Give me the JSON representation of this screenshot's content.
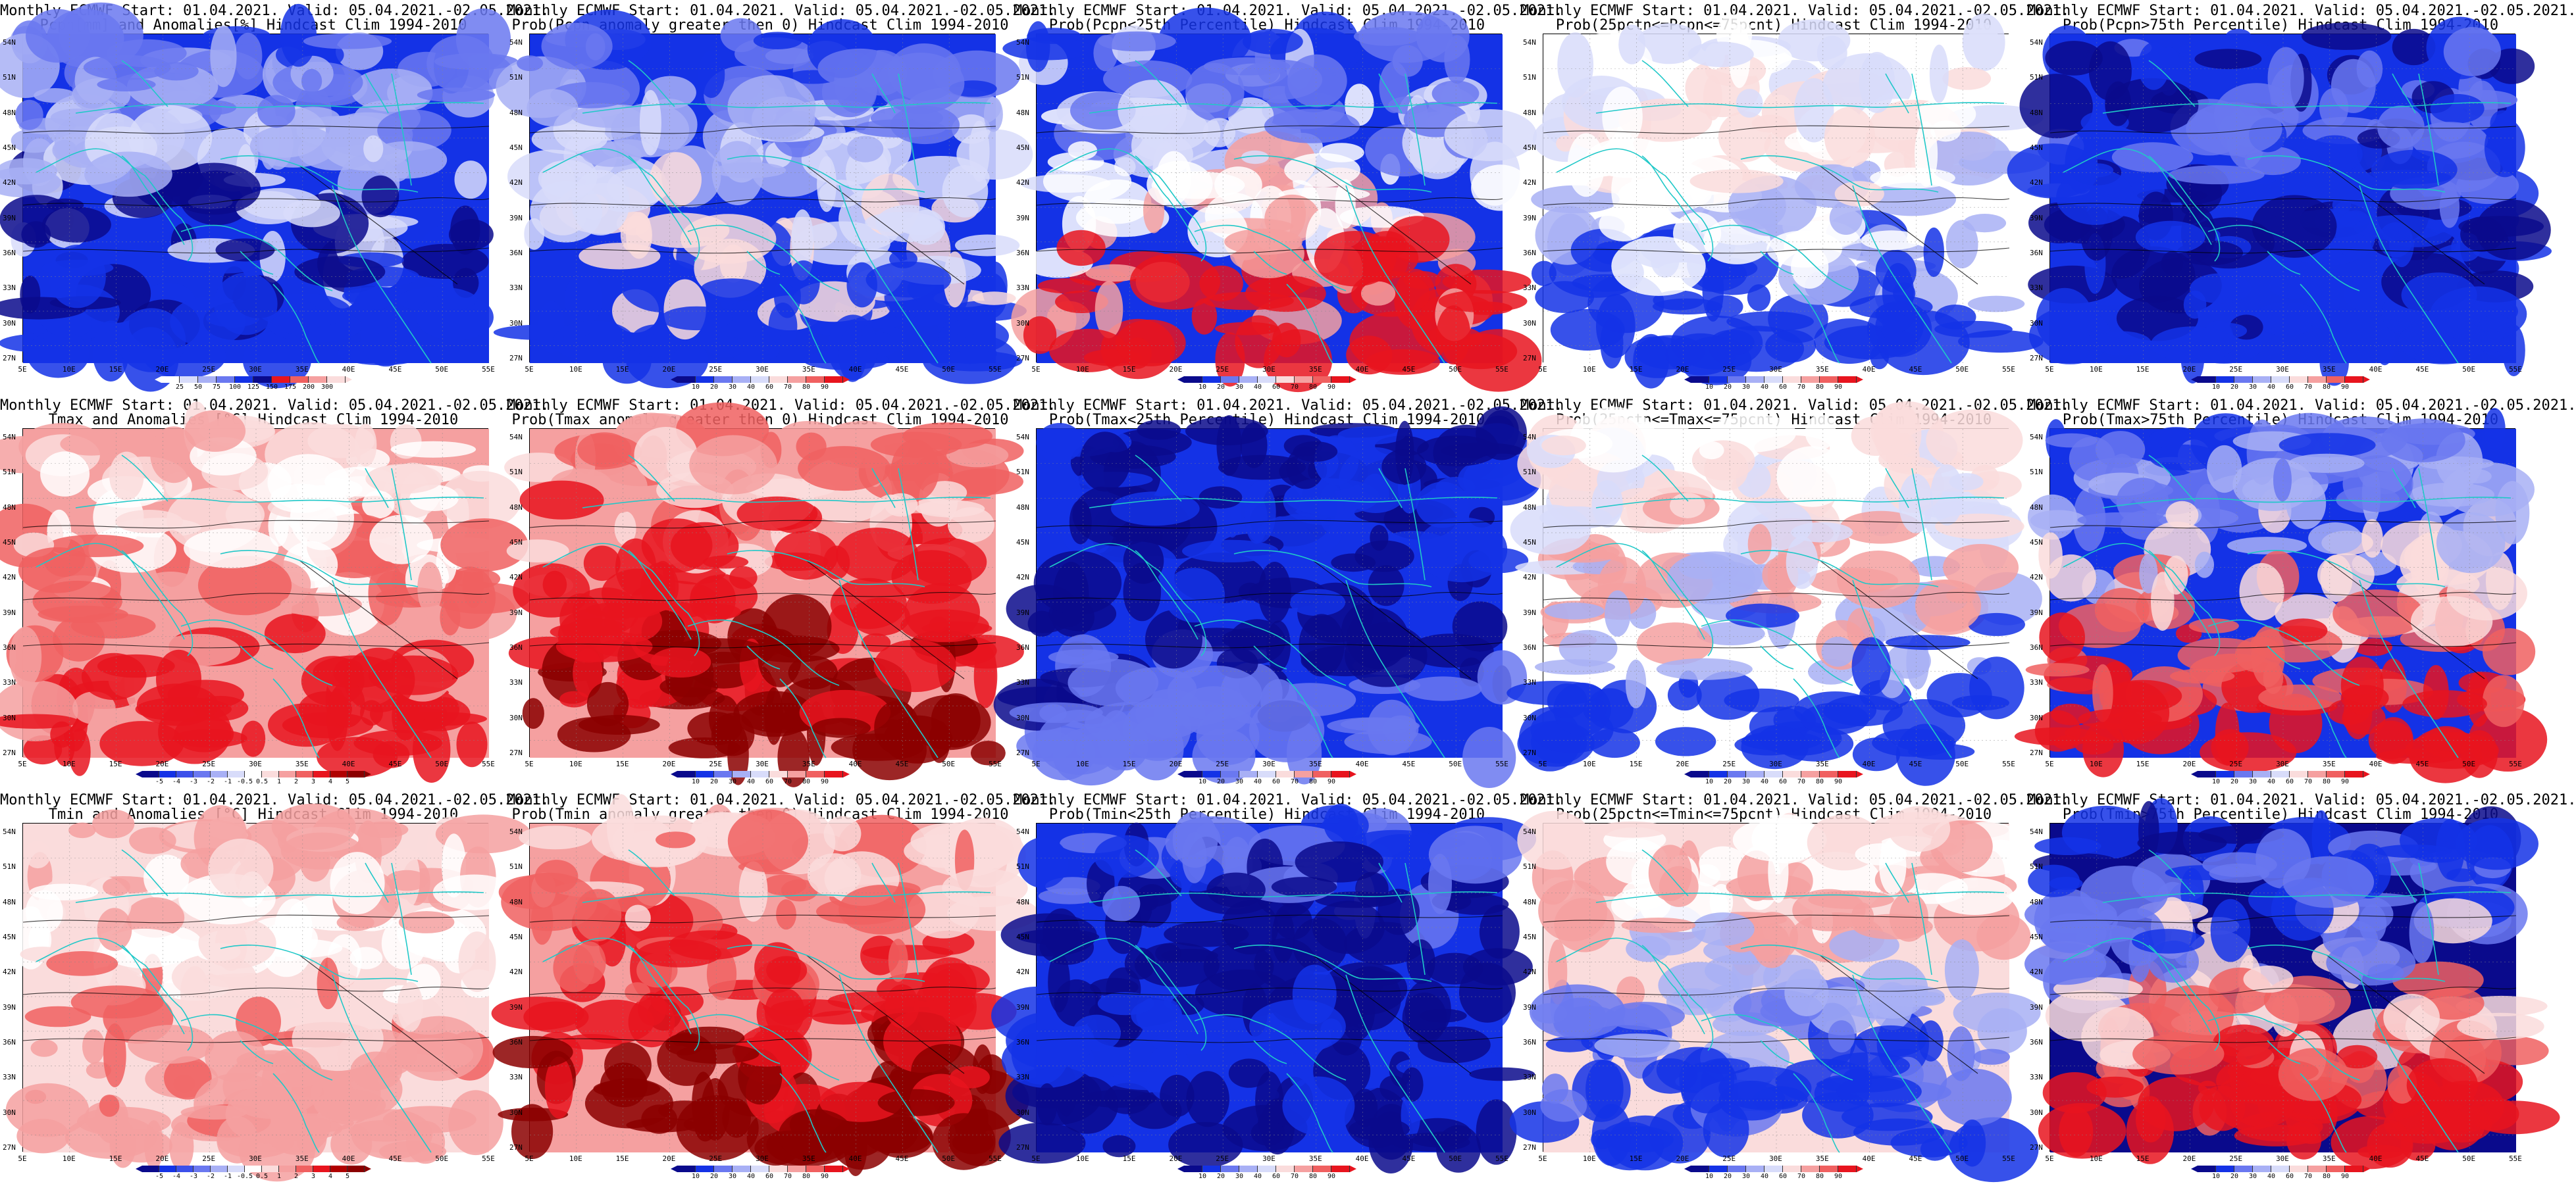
{
  "header_line": "Monthly ECMWF Start: 01.04.2021. Valid: 05.04.2021.-02.05.2021.",
  "lat_labels": [
    "54N",
    "51N",
    "48N",
    "45N",
    "42N",
    "39N",
    "36N",
    "33N",
    "30N",
    "27N"
  ],
  "lon_labels": [
    "5E",
    "10E",
    "15E",
    "20E",
    "25E",
    "30E",
    "35E",
    "40E",
    "45E",
    "50E",
    "55E"
  ],
  "colors": {
    "red_dark": "#8b0000",
    "red": "#e8141e",
    "red_mid": "#f06060",
    "red_light": "#f5a0a0",
    "red_pale": "#fadcdc",
    "white": "#ffffff",
    "blue_pale": "#d8dcfa",
    "blue_light": "#a8b0f5",
    "blue_mid": "#6a78f0",
    "blue": "#1432e6",
    "blue_dark": "#0a0a8c",
    "coast": "#20c8c8",
    "contour": "#000000"
  },
  "colorbars": {
    "pcpn": {
      "ticks": [
        "25",
        "50",
        "75",
        "100",
        "125",
        "150",
        "175",
        "200",
        "300"
      ],
      "colors": [
        "#ffffff",
        "#d8dcfa",
        "#a8b0f5",
        "#6a78f0",
        "#1432e6",
        "#0a0a8c",
        "#e8141e",
        "#f06060",
        "#f5a0a0",
        "#fadcdc"
      ]
    },
    "prob": {
      "ticks": [
        "10",
        "20",
        "30",
        "40",
        "60",
        "70",
        "80",
        "90"
      ],
      "colors": [
        "#0a0a8c",
        "#1432e6",
        "#6a78f0",
        "#a8b0f5",
        "#d8dcfa",
        "#fadcdc",
        "#f5a0a0",
        "#f06060",
        "#e8141e"
      ]
    },
    "anom": {
      "ticks": [
        "-5",
        "-4",
        "-3",
        "-2",
        "-1",
        "-0.5",
        "0.5",
        "1",
        "2",
        "3",
        "4",
        "5"
      ],
      "colors": [
        "#0a0a8c",
        "#1432e6",
        "#3c50ea",
        "#6a78f0",
        "#a8b0f5",
        "#d8dcfa",
        "#ffffff",
        "#fadcdc",
        "#f5a0a0",
        "#f06060",
        "#e8141e",
        "#b00000",
        "#8b0000"
      ]
    }
  },
  "panels": [
    {
      "id": "pcpn-anomalies",
      "title1": "Monthly ECMWF Start: 01.04.2021. Valid: 05.04.2021.-02.05.2021.",
      "title2": "Pcpn[mm] and Anomalies[%] Hindcast Clim 1994-2010",
      "scale": "pcpn",
      "palette": [
        "#1432e6",
        "#6a78f0",
        "#a8b0f5",
        "#d8dcfa",
        "#0a0a8c",
        "#1432e6"
      ],
      "row": 0,
      "col": 0
    },
    {
      "id": "prob-pcpn-anom-gt0",
      "title1": "Monthly ECMWF Start: 01.04.2021. Valid: 05.04.2021.-02.05.2021.",
      "title2": "Prob(Pcpn anomaly greater then 0) Hindcast Clim 1994-2010",
      "scale": "prob",
      "palette": [
        "#1432e6",
        "#6a78f0",
        "#a8b0f5",
        "#d8dcfa",
        "#fadcdc",
        "#1432e6"
      ],
      "row": 0,
      "col": 1
    },
    {
      "id": "prob-pcpn-lt25",
      "title1": "Monthly ECMWF Start: 01.04.2021. Valid: 05.04.2021.-02.05.2021.",
      "title2": "Prob(Pcpn<25th Percentile) Hindcast Clim 1994-2010",
      "scale": "prob",
      "palette": [
        "#1432e6",
        "#6a78f0",
        "#d8dcfa",
        "#ffffff",
        "#f5a0a0",
        "#e8141e"
      ],
      "row": 0,
      "col": 2
    },
    {
      "id": "prob-pcpn-25-75",
      "title1": "Monthly ECMWF Start: 01.04.2021. Valid: 05.04.2021.-02.05.2021.",
      "title2": "Prob(25pctn<=Pcpn<=75pcnt) Hindcast Clim 1994-2010",
      "scale": "prob",
      "palette": [
        "#ffffff",
        "#d8dcfa",
        "#fadcdc",
        "#ffffff",
        "#a8b0f5",
        "#1432e6"
      ],
      "row": 0,
      "col": 3
    },
    {
      "id": "prob-pcpn-gt75",
      "title1": "Monthly ECMWF Start: 01.04.2021. Valid: 05.04.2021.-02.05.2021.",
      "title2": "Prob(Pcpn>75th Percentile) Hindcast Clim 1994-2010",
      "scale": "prob",
      "palette": [
        "#1432e6",
        "#0a0a8c",
        "#6a78f0",
        "#1432e6",
        "#0a0a8c",
        "#1432e6"
      ],
      "row": 0,
      "col": 4
    },
    {
      "id": "tmax-anomalies",
      "title1": "Monthly ECMWF Start: 01.04.2021. Valid: 05.04.2021.-02.05.2021.",
      "title2": "Tmax and Anomalies [°C] Hindcast Clim 1994-2010",
      "scale": "anom",
      "palette": [
        "#f5a0a0",
        "#fadcdc",
        "#ffffff",
        "#f06060",
        "#f5a0a0",
        "#e8141e"
      ],
      "row": 1,
      "col": 0
    },
    {
      "id": "prob-tmax-anom-gt0",
      "title1": "Monthly ECMWF Start: 01.04.2021. Valid: 05.04.2021.-02.05.2021.",
      "title2": "Prob(Tmax anomaly greater then 0) Hindcast Clim 1994-2010",
      "scale": "prob",
      "palette": [
        "#f5a0a0",
        "#f06060",
        "#fadcdc",
        "#e8141e",
        "#e8141e",
        "#8b0000"
      ],
      "row": 1,
      "col": 1
    },
    {
      "id": "prob-tmax-lt25",
      "title1": "Monthly ECMWF Start: 01.04.2021. Valid: 05.04.2021.-02.05.2021.",
      "title2": "Prob(Tmax<25th Percentile) Hindcast Clim 1994-2010",
      "scale": "prob",
      "palette": [
        "#1432e6",
        "#0a0a8c",
        "#1432e6",
        "#0a0a8c",
        "#0a0a8c",
        "#6a78f0"
      ],
      "row": 1,
      "col": 2
    },
    {
      "id": "prob-tmax-25-75",
      "title1": "Monthly ECMWF Start: 01.04.2021. Valid: 05.04.2021.-02.05.2021.",
      "title2": "Prob(25pctn<=Tmax<=75pcnt) Hindcast Clim 1994-2010",
      "scale": "prob",
      "palette": [
        "#ffffff",
        "#fadcdc",
        "#d8dcfa",
        "#f5a0a0",
        "#a8b0f5",
        "#1432e6"
      ],
      "row": 1,
      "col": 3
    },
    {
      "id": "prob-tmax-gt75",
      "title1": "Monthly ECMWF Start: 01.04.2021. Valid: 05.04.2021.-02.05.2021.",
      "title2": "Prob(Tmax>75th Percentile) Hindcast Clim 1994-2010",
      "scale": "prob",
      "palette": [
        "#1432e6",
        "#6a78f0",
        "#a8b0f5",
        "#fadcdc",
        "#f06060",
        "#e8141e"
      ],
      "row": 1,
      "col": 4
    },
    {
      "id": "tmin-anomalies",
      "title1": "Monthly ECMWF Start: 01.04.2021. Valid: 05.04.2021.-02.05.2021.",
      "title2": "Tmin and Anomalies [°C] Hindcast Clim 1994-2010",
      "scale": "anom",
      "palette": [
        "#fadcdc",
        "#f5a0a0",
        "#ffffff",
        "#fadcdc",
        "#f06060",
        "#f5a0a0"
      ],
      "row": 2,
      "col": 0
    },
    {
      "id": "prob-tmin-anom-gt0",
      "title1": "Monthly ECMWF Start: 01.04.2021. Valid: 05.04.2021.-02.05.2021.",
      "title2": "Prob(Tmin anomaly greater then 0) Hindcast Clim 1994-2010",
      "scale": "prob",
      "palette": [
        "#f5a0a0",
        "#fadcdc",
        "#f06060",
        "#e8141e",
        "#e8141e",
        "#8b0000"
      ],
      "row": 2,
      "col": 1
    },
    {
      "id": "prob-tmin-lt25",
      "title1": "Monthly ECMWF Start: 01.04.2021. Valid: 05.04.2021.-02.05.2021.",
      "title2": "Prob(Tmin<25th Percentile) Hindcast Clim 1994-2010",
      "scale": "prob",
      "palette": [
        "#1432e6",
        "#6a78f0",
        "#0a0a8c",
        "#0a0a8c",
        "#1432e6",
        "#0a0a8c"
      ],
      "row": 2,
      "col": 2
    },
    {
      "id": "prob-tmin-25-75",
      "title1": "Monthly ECMWF Start: 01.04.2021. Valid: 05.04.2021.-02.05.2021.",
      "title2": "Prob(25pctn<=Tmin<=75pcnt) Hindcast Clim 1994-2010",
      "scale": "prob",
      "palette": [
        "#fadcdc",
        "#ffffff",
        "#f5a0a0",
        "#a8b0f5",
        "#6a78f0",
        "#1432e6"
      ],
      "row": 2,
      "col": 3
    },
    {
      "id": "prob-tmin-gt75",
      "title1": "Monthly ECMWF Start: 01.04.2021. Valid: 05.04.2021.-02.05.2021.",
      "title2": "Prob(Tmin>75th Percentile) Hindcast Clim 1994-2010",
      "scale": "prob",
      "palette": [
        "#0a0a8c",
        "#1432e6",
        "#6a78f0",
        "#fadcdc",
        "#f06060",
        "#e8141e"
      ],
      "row": 2,
      "col": 4
    }
  ]
}
